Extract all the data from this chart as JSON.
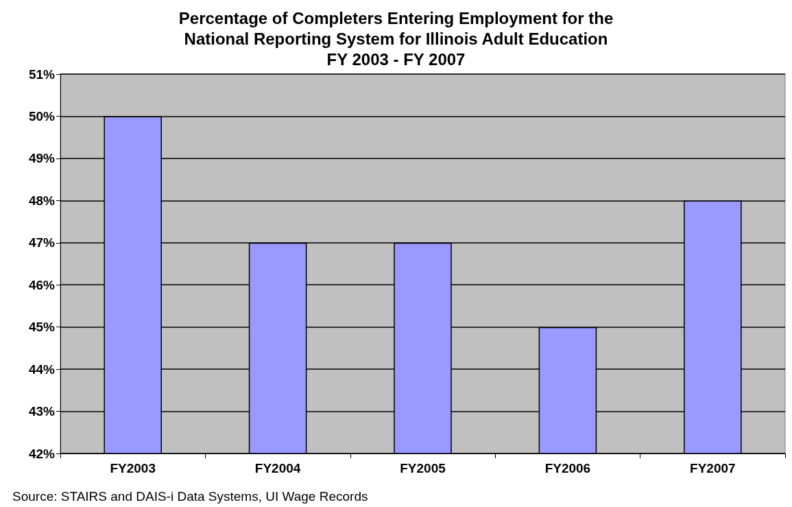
{
  "chart_data": {
    "type": "bar",
    "title": "Percentage of Completers Entering Employment for the\nNational Reporting System for Illinois Adult Education\nFY 2003 - FY 2007",
    "categories": [
      "FY2003",
      "FY2004",
      "FY2005",
      "FY2006",
      "FY2007"
    ],
    "values": [
      50,
      47,
      47,
      45,
      48
    ],
    "color": "#9999ff",
    "ylim": [
      42,
      51
    ],
    "yticks": [
      {
        "value": 42,
        "label": "42%"
      },
      {
        "value": 43,
        "label": "43%"
      },
      {
        "value": 44,
        "label": "44%"
      },
      {
        "value": 45,
        "label": "45%"
      },
      {
        "value": 46,
        "label": "46%"
      },
      {
        "value": 47,
        "label": "47%"
      },
      {
        "value": 48,
        "label": "48%"
      },
      {
        "value": 49,
        "label": "49%"
      },
      {
        "value": 50,
        "label": "50%"
      },
      {
        "value": 51,
        "label": "51%"
      }
    ],
    "grid": "y",
    "annotations": [
      "Source: STAIRS and DAIS-i Data Systems, UI Wage Records"
    ]
  }
}
